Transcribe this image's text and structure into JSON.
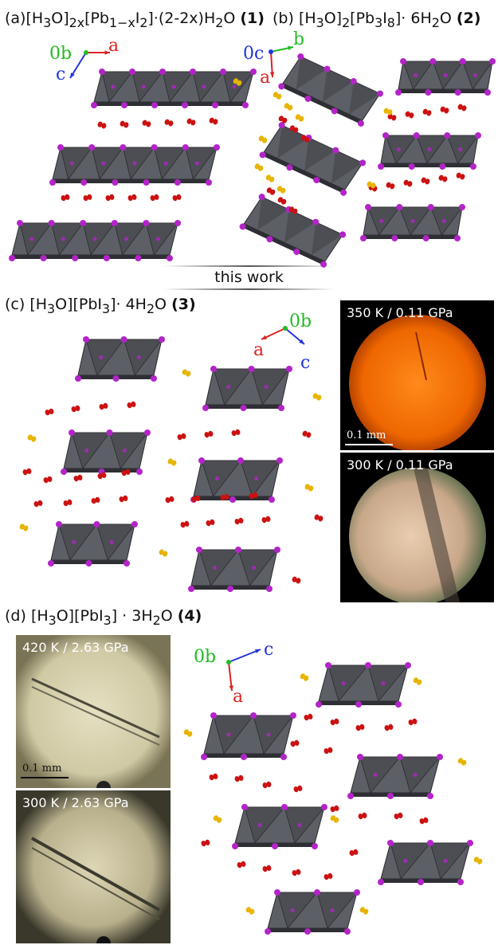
{
  "panels": {
    "a": {
      "prefix": "(a)",
      "formula_html": "[H<sub>3</sub>O]<sub>2x</sub>[Pb<sub>1−x</sub>I<sub>2</sub>]·(2-2x)H<sub>2</sub>O",
      "number": "(1)"
    },
    "b": {
      "prefix": "(b)",
      "formula_html": "[H<sub>3</sub>O]<sub>2</sub>[Pb<sub>3</sub>I<sub>8</sub>]· 6H<sub>2</sub>O",
      "number": "(2)"
    },
    "c": {
      "prefix": "(c)",
      "formula_html": "[H<sub>3</sub>O][PbI<sub>3</sub>]· 4H<sub>2</sub>O",
      "number": "(3)"
    },
    "d": {
      "prefix": "(d)",
      "formula_html": "[H<sub>3</sub>O][PbI<sub>3</sub>] · 3H<sub>2</sub>O",
      "number": "(4)"
    }
  },
  "this_work": "this work",
  "axes": {
    "origin_b": "0b",
    "origin_c": "0c",
    "a": "a",
    "b": "b",
    "c": "c"
  },
  "photos": {
    "c_top": {
      "label": "350 K / 0.11 GPa",
      "scale": "0.1 mm"
    },
    "c_bottom": {
      "label": "300 K / 0.11 GPa"
    },
    "d_top": {
      "label": "420 K / 2.63 GPa",
      "scale": "0.1 mm"
    },
    "d_bottom": {
      "label": "300 K / 2.63 GPa"
    }
  },
  "colors": {
    "octahedron": "#5d5f66",
    "octahedron_dark": "#3f4046",
    "iodine": "#b324c8",
    "oxygen": "#cc1111",
    "water_yellow": "#e8b400",
    "axis_a": "#dd2222",
    "axis_b": "#22bb22",
    "axis_c": "#2233dd"
  }
}
